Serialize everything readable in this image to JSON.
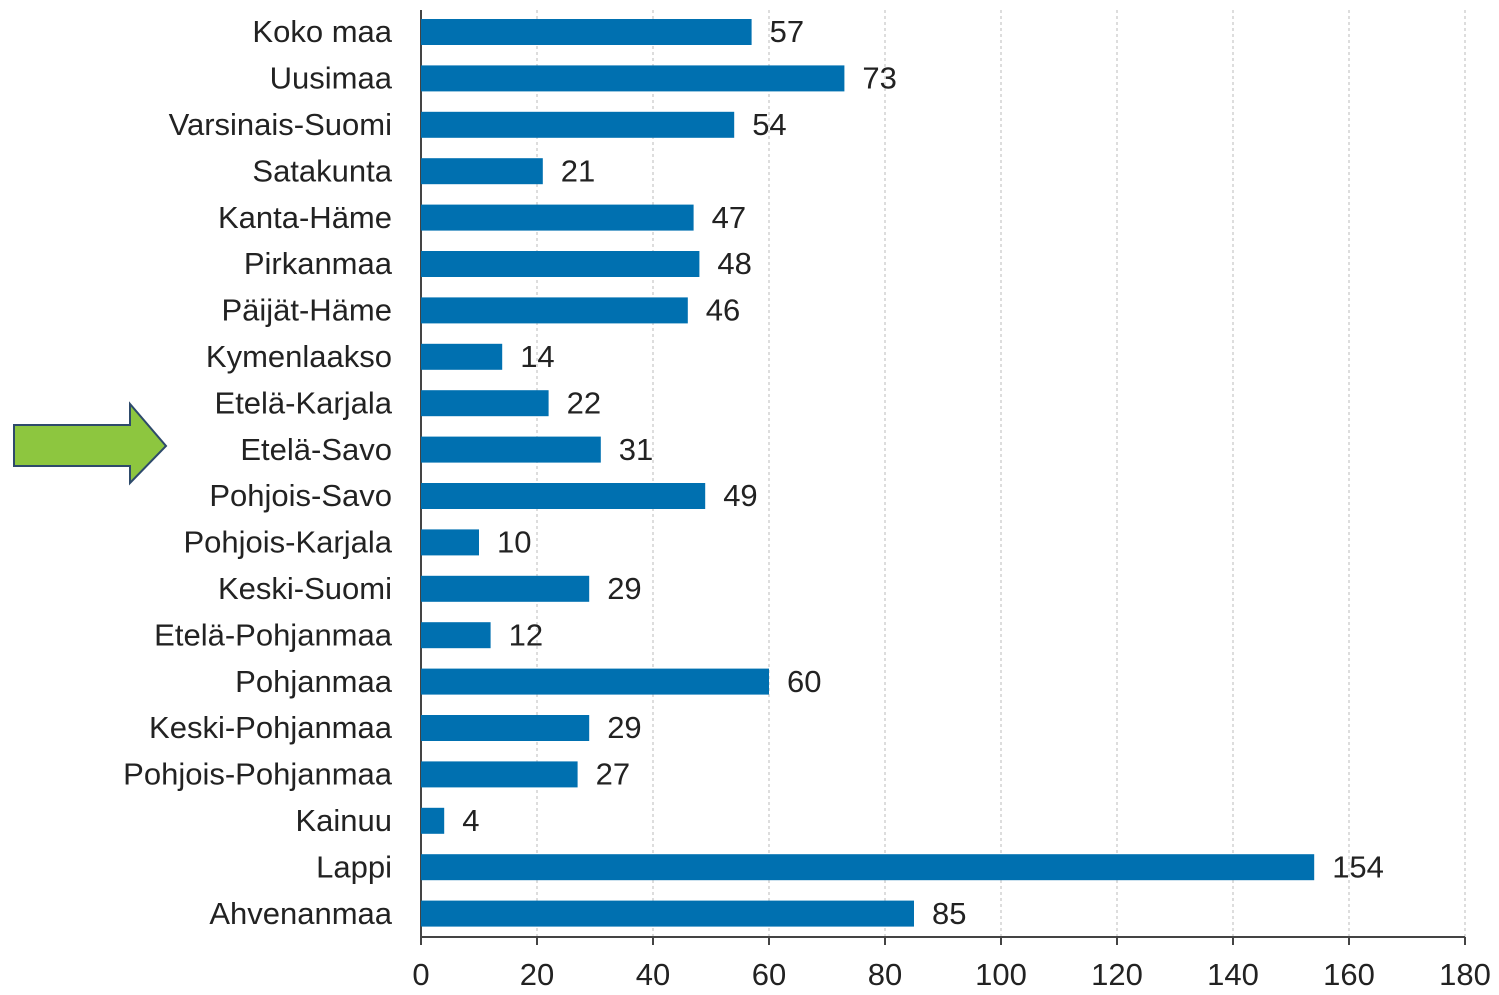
{
  "chart_data": {
    "type": "barh",
    "categories": [
      "Koko maa",
      "Uusimaa",
      "Varsinais-Suomi",
      "Satakunta",
      "Kanta-Häme",
      "Pirkanmaa",
      "Päijät-Häme",
      "Kymenlaakso",
      "Etelä-Karjala",
      "Etelä-Savo",
      "Pohjois-Savo",
      "Pohjois-Karjala",
      "Keski-Suomi",
      "Etelä-Pohjanmaa",
      "Pohjanmaa",
      "Keski-Pohjanmaa",
      "Pohjois-Pohjanmaa",
      "Kainuu",
      "Lappi",
      "Ahvenanmaa"
    ],
    "values": [
      57,
      73,
      54,
      21,
      47,
      48,
      46,
      14,
      22,
      31,
      49,
      10,
      29,
      12,
      60,
      29,
      27,
      4,
      154,
      85
    ],
    "color": "#0070b0",
    "xlim": [
      0,
      180
    ],
    "xticks": [
      0,
      20,
      40,
      60,
      80,
      100,
      120,
      140,
      160,
      180
    ],
    "grid": true
  }
}
